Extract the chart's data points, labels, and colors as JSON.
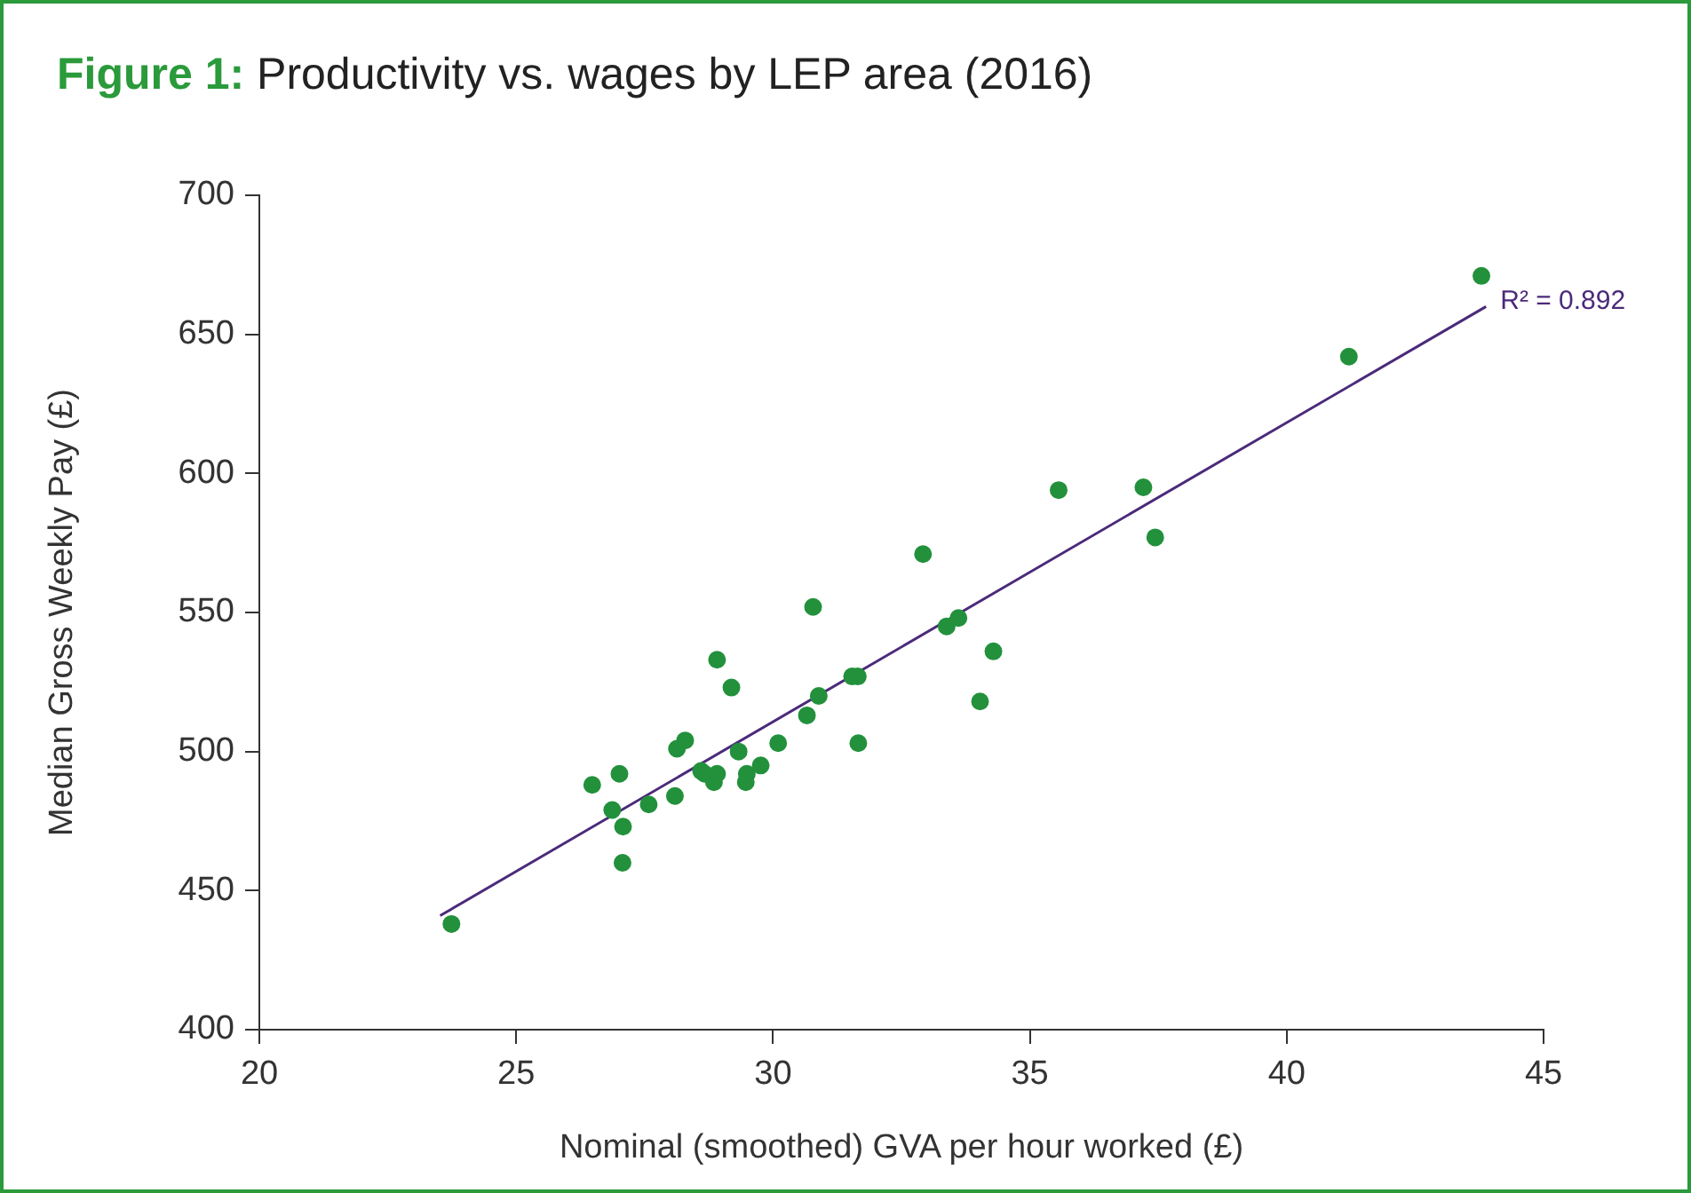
{
  "chart_data": {
    "type": "scatter",
    "title": "Figure 1: Productivity vs. wages by LEP area (2016)",
    "xlabel": "Nominal (smoothed) GVA per hour worked (£)",
    "ylabel": "Median Gross Weekly Pay (£)",
    "xlim": [
      20,
      45
    ],
    "xticks": [
      20,
      25,
      30,
      35,
      40,
      45
    ],
    "ylim": [
      400,
      700
    ],
    "yticks": [
      400,
      450,
      500,
      550,
      600,
      650,
      700
    ],
    "grid": false,
    "legend": false,
    "series": [
      {
        "marker": "circle",
        "color": "#23913c",
        "x": [
          23.74,
          26.48,
          27.01,
          26.87,
          27.08,
          27.07,
          27.58,
          28.09,
          28.13,
          28.29,
          28.6,
          28.67,
          28.91,
          28.85,
          28.91,
          29.19,
          29.33,
          29.49,
          29.47,
          29.76,
          30.1,
          30.78,
          30.66,
          30.89,
          31.54,
          31.65,
          31.66,
          33.38,
          33.61,
          34.29,
          34.03,
          35.56,
          37.21,
          37.44,
          32.92,
          41.21,
          43.79
        ],
        "values": [
          438,
          488,
          492,
          479,
          473,
          460,
          481,
          484,
          501,
          504,
          493,
          492,
          492,
          489,
          533,
          523,
          500,
          492,
          489,
          495,
          503,
          552,
          513,
          520,
          527,
          527,
          503,
          545,
          548,
          536,
          518,
          594,
          595,
          577,
          571,
          642,
          671
        ]
      },
      {
        "type": "line",
        "color": "#4b2a7a",
        "x": [
          23.52,
          43.88
        ],
        "values": [
          441,
          660
        ]
      }
    ],
    "annotations": [
      {
        "text": "R² = 0.892",
        "x": 43.88,
        "y": 660
      }
    ]
  }
}
